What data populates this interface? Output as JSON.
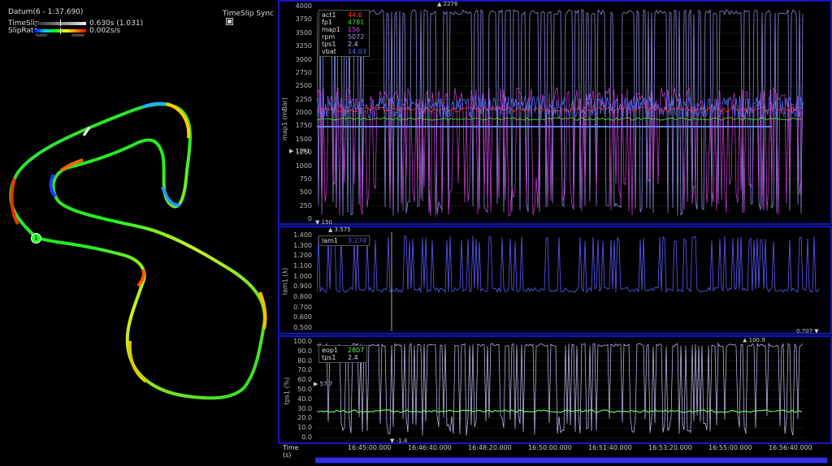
{
  "map_panel": {
    "datum": "Datum(6 - 1:37.690)",
    "timeslip_label": "TimeSlip",
    "timeslip_value": "0.630s (1.031)",
    "sliprate_label": "SlipRate",
    "sliprate_value": "0.002s/s",
    "scale_faster": "faster",
    "scale_slower": "slower",
    "sync_label": "TimeSlip Sync",
    "start_marker": "1"
  },
  "panel1": {
    "ylabel": "map1 (mBar)",
    "yticks": [
      "4000",
      "3750",
      "3500",
      "3250",
      "3000",
      "2750",
      "2500",
      "2250",
      "2000",
      "1750",
      "1500",
      "1250",
      "1000",
      "750",
      "500",
      "250",
      "0"
    ],
    "marker_top": "2276",
    "marker_left": "1291",
    "marker_bottom": "150",
    "legend": [
      {
        "name": "act1",
        "value": "44.6",
        "color": "#ff3b3b"
      },
      {
        "name": "fp1",
        "value": "4781",
        "color": "#44dd44"
      },
      {
        "name": "map1",
        "value": "156",
        "color": "#d040e0"
      },
      {
        "name": "rpm",
        "value": "5072",
        "color": "#9a9aff"
      },
      {
        "name": "tps1",
        "value": "2.4",
        "color": "#c8c8ff"
      },
      {
        "name": "vbat",
        "value": "14.03",
        "color": "#4a6cff"
      }
    ]
  },
  "panel2": {
    "ylabel": "lam1 (λ)",
    "yticks": [
      "1.400",
      "1.300",
      "1.200",
      "1.100",
      "1.000",
      "0.900",
      "0.800",
      "0.700",
      "0.600",
      "0.500"
    ],
    "marker_top": "3.575",
    "marker_bottom": "0.707",
    "legend": [
      {
        "name": "lam1",
        "value": "3.274",
        "color": "#5a5aff"
      }
    ]
  },
  "panel3": {
    "ylabel": "tps1 (%)",
    "yticks": [
      "100.0",
      "90.0",
      "80.0",
      "70.0",
      "60.0",
      "50.0",
      "40.0",
      "30.0",
      "20.0",
      "10.0",
      "0.0"
    ],
    "marker_top": "100.9",
    "marker_left": "57.7",
    "marker_bottom": "-1.4",
    "legend": [
      {
        "name": "eop1",
        "value": "2807",
        "color": "#66ee66"
      },
      {
        "name": "tps1",
        "value": "2.4",
        "color": "#c8c8ff"
      }
    ]
  },
  "time_axis": {
    "label": "Time",
    "unit": "(s)",
    "ticks": [
      "16:45:00.000",
      "16:46:40.000",
      "16:48:20.000",
      "16:50:00.000",
      "16:51:40.000",
      "16:53:20.000",
      "16:55:00.000",
      "16:56:40.000"
    ]
  },
  "colors": {
    "frame": "#1515c8",
    "rpm": "#9a9aff",
    "map": "#d040e0",
    "vbat": "#4a6cff",
    "fp": "#44dd44",
    "act": "#ff3b3b",
    "lam": "#5a5aff",
    "eop": "#66ee66",
    "tps": "#c8c8ff"
  }
}
